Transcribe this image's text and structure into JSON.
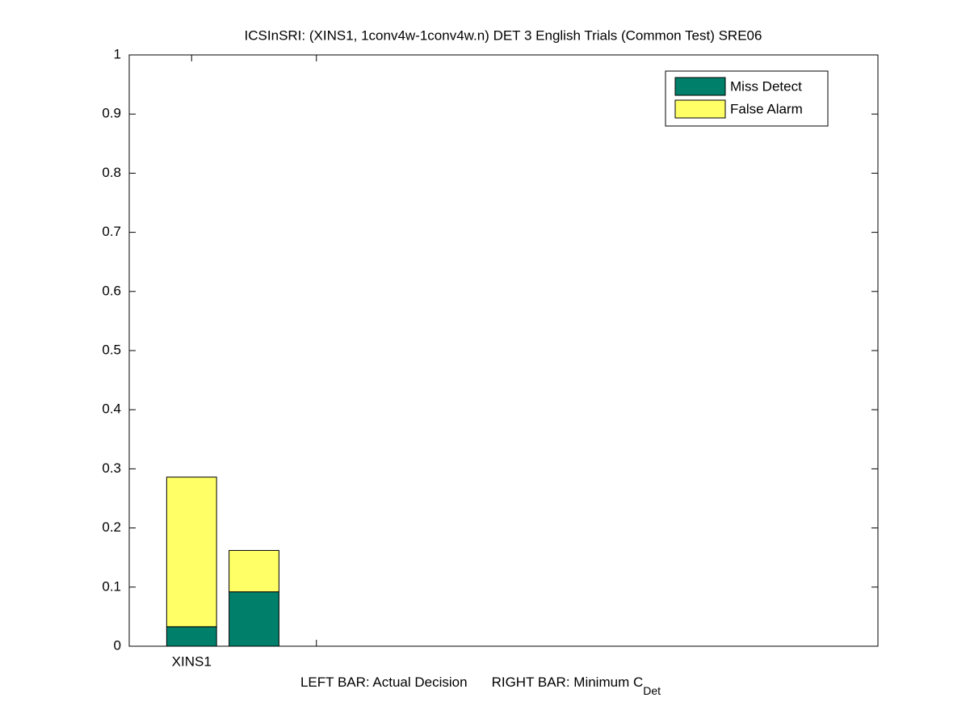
{
  "chart_data": {
    "type": "stacked_bar",
    "title": "ICSInSRI: (XINS1, 1conv4w-1conv4w.n) DET 3 English Trials (Common Test) SRE06",
    "xlabel": [
      "LEFT BAR: Actual Decision",
      "RIGHT BAR: Minimum C",
      "Det"
    ],
    "x": [
      1,
      1.5
    ],
    "series": [
      {
        "name": "Miss Detect",
        "color": "#00806a",
        "values": [
          0.033,
          0.092
        ]
      },
      {
        "name": "False Alarm",
        "color": "#ffff66",
        "values": [
          0.253,
          0.07
        ]
      }
    ],
    "xlim": [
      0.5,
      6.5
    ],
    "xticks": [
      {
        "value": 1,
        "label": "XINS1"
      },
      {
        "value": 2,
        "label": null
      }
    ],
    "ylim": [
      0,
      1
    ],
    "yticks": [
      0,
      0.1,
      0.2,
      0.3,
      0.4,
      0.5,
      0.6,
      0.7,
      0.8,
      0.9,
      1
    ],
    "legend": "top-right"
  }
}
